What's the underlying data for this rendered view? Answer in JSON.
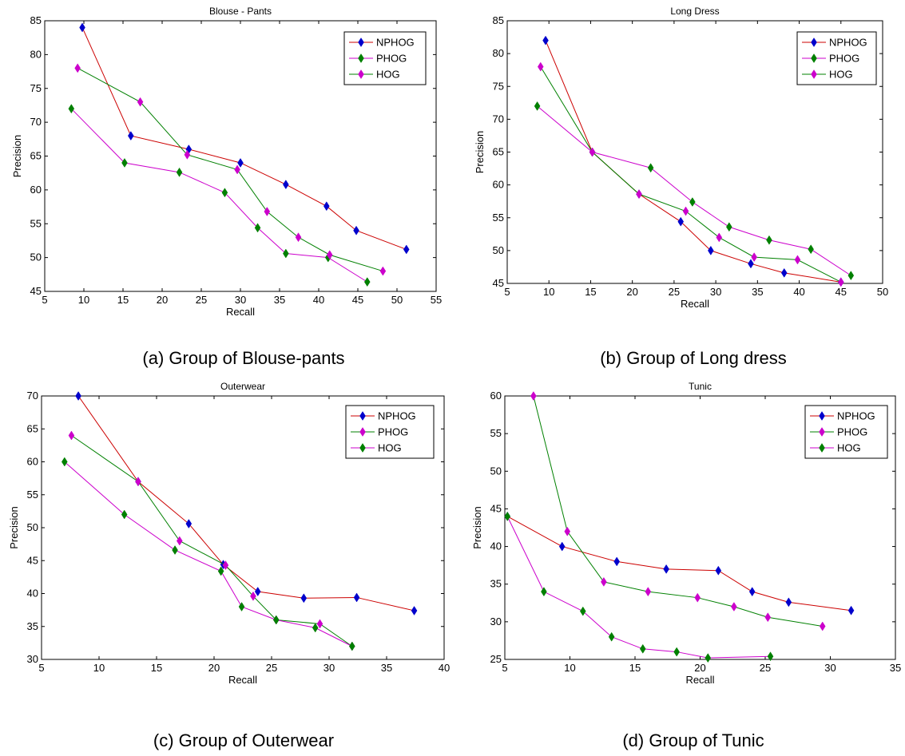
{
  "captions": [
    "(a)  Group of Blouse-pants",
    "(b)  Group of Long dress",
    "(c)  Group of Outerwear",
    "(d)  Group of Tunic"
  ],
  "chart_data": [
    {
      "type": "line",
      "title": "Blouse - Pants",
      "xlabel": "Recall",
      "ylabel": "Precision",
      "xlim": [
        5,
        55
      ],
      "ylim": [
        45,
        85
      ],
      "xticks": [
        5,
        10,
        15,
        20,
        25,
        30,
        35,
        40,
        45,
        50,
        55
      ],
      "yticks": [
        45,
        50,
        55,
        60,
        65,
        70,
        75,
        80,
        85
      ],
      "grid": false,
      "legend": "top-right",
      "legend_entries": [
        {
          "label": "NPHOG",
          "line": "#cc0000",
          "marker": "#0000cc"
        },
        {
          "label": "PHOG",
          "line": "#cc00cc",
          "marker": "#008000"
        },
        {
          "label": "HOG",
          "line": "#008000",
          "marker": "#cc00cc"
        }
      ],
      "series": [
        {
          "line": "#cc0000",
          "marker": "#0000cc",
          "x": [
            9.8,
            16,
            23.4,
            30,
            35.8,
            41,
            44.8,
            51.2
          ],
          "y": [
            84,
            68,
            66,
            64,
            60.8,
            57.6,
            54,
            51.2
          ]
        },
        {
          "line": "#cc00cc",
          "marker": "#008000",
          "x": [
            8.4,
            15.2,
            22.2,
            28,
            32.2,
            35.8,
            41.2,
            46.2
          ],
          "y": [
            72,
            64,
            62.6,
            59.6,
            54.4,
            50.6,
            50,
            46.4
          ]
        },
        {
          "line": "#008000",
          "marker": "#cc00cc",
          "x": [
            9.2,
            17.2,
            23.2,
            29.6,
            33.4,
            37.4,
            41.4,
            48.2
          ],
          "y": [
            78,
            73,
            65.2,
            63,
            56.8,
            53,
            50.4,
            48
          ]
        }
      ]
    },
    {
      "type": "line",
      "title": "Long Dress",
      "xlabel": "Recall",
      "ylabel": "Precision",
      "xlim": [
        5,
        50
      ],
      "ylim": [
        45,
        85
      ],
      "xticks": [
        5,
        10,
        15,
        20,
        25,
        30,
        35,
        40,
        45,
        50
      ],
      "yticks": [
        45,
        50,
        55,
        60,
        65,
        70,
        75,
        80,
        85
      ],
      "grid": false,
      "legend": "top-right",
      "legend_entries": [
        {
          "label": "NPHOG",
          "line": "#cc0000",
          "marker": "#0000cc"
        },
        {
          "label": "PHOG",
          "line": "#cc00cc",
          "marker": "#008000"
        },
        {
          "label": "HOG",
          "line": "#008000",
          "marker": "#cc00cc"
        }
      ],
      "series": [
        {
          "line": "#cc0000",
          "marker": "#0000cc",
          "x": [
            9.6,
            15.2,
            20.8,
            25.8,
            29.4,
            34.2,
            38.2,
            45
          ],
          "y": [
            82,
            65,
            58.6,
            54.4,
            50,
            48,
            46.6,
            45.2
          ]
        },
        {
          "line": "#cc00cc",
          "marker": "#008000",
          "x": [
            8.6,
            15.2,
            22.2,
            27.2,
            31.6,
            36.4,
            41.4,
            46.2
          ],
          "y": [
            72,
            65,
            62.6,
            57.4,
            53.6,
            51.6,
            50.2,
            46.2
          ]
        },
        {
          "line": "#008000",
          "marker": "#cc00cc",
          "x": [
            9,
            15.2,
            20.8,
            26.4,
            30.4,
            34.6,
            39.8,
            45
          ],
          "y": [
            78,
            65,
            58.6,
            56,
            52,
            49,
            48.6,
            45.2
          ]
        }
      ]
    },
    {
      "type": "line",
      "title": "Outerwear",
      "xlabel": "Recall",
      "ylabel": "Precision",
      "xlim": [
        5,
        40
      ],
      "ylim": [
        30,
        70
      ],
      "xticks": [
        5,
        10,
        15,
        20,
        25,
        30,
        35,
        40
      ],
      "yticks": [
        30,
        35,
        40,
        45,
        50,
        55,
        60,
        65,
        70
      ],
      "grid": false,
      "legend": "top-right",
      "legend_entries": [
        {
          "label": "NPHOG",
          "line": "#cc0000",
          "marker": "#0000cc"
        },
        {
          "label": "PHOG",
          "line": "#008000",
          "marker": "#cc00cc"
        },
        {
          "label": "HOG",
          "line": "#cc00cc",
          "marker": "#008000"
        }
      ],
      "series": [
        {
          "line": "#cc0000",
          "marker": "#0000cc",
          "x": [
            8.2,
            13.4,
            17.8,
            20.8,
            23.8,
            27.8,
            32.4,
            37.4
          ],
          "y": [
            70,
            57,
            50.6,
            44.4,
            40.3,
            39.3,
            39.4,
            37.4
          ]
        },
        {
          "line": "#008000",
          "marker": "#cc00cc",
          "x": [
            7.6,
            13.4,
            17,
            21,
            23.4,
            25.4,
            29.2,
            32
          ],
          "y": [
            64,
            57,
            48,
            44.3,
            39.6,
            36,
            35.4,
            32
          ]
        },
        {
          "line": "#cc00cc",
          "marker": "#008000",
          "x": [
            7,
            12.2,
            16.6,
            20.6,
            22.4,
            25.4,
            28.8,
            32
          ],
          "y": [
            60,
            52,
            46.6,
            43.4,
            38,
            36,
            34.8,
            32
          ]
        }
      ]
    },
    {
      "type": "line",
      "title": "Tunic",
      "xlabel": "Recall",
      "ylabel": "Precision",
      "xlim": [
        5,
        35
      ],
      "ylim": [
        25,
        60
      ],
      "xticks": [
        5,
        10,
        15,
        20,
        25,
        30,
        35
      ],
      "yticks": [
        25,
        30,
        35,
        40,
        45,
        50,
        55,
        60
      ],
      "grid": false,
      "legend": "top-right",
      "legend_entries": [
        {
          "label": "NPHOG",
          "line": "#cc0000",
          "marker": "#0000cc"
        },
        {
          "label": "PHOG",
          "line": "#008000",
          "marker": "#cc00cc"
        },
        {
          "label": "HOG",
          "line": "#cc00cc",
          "marker": "#008000"
        }
      ],
      "series": [
        {
          "line": "#cc0000",
          "marker": "#0000cc",
          "x": [
            5.2,
            9.4,
            13.6,
            17.4,
            21.4,
            24,
            26.8,
            31.6
          ],
          "y": [
            44,
            40,
            38,
            37,
            36.8,
            34,
            32.6,
            31.5
          ]
        },
        {
          "line": "#008000",
          "marker": "#cc00cc",
          "x": [
            7.2,
            9.8,
            12.6,
            16,
            19.8,
            22.6,
            25.2,
            29.4
          ],
          "y": [
            60,
            42,
            35.3,
            34,
            33.2,
            32,
            30.6,
            29.4
          ]
        },
        {
          "line": "#cc00cc",
          "marker": "#008000",
          "x": [
            5.2,
            8,
            11,
            13.2,
            15.6,
            18.2,
            20.6,
            25.4
          ],
          "y": [
            44,
            34,
            31.4,
            28,
            26.4,
            26,
            25.2,
            25.4
          ]
        }
      ]
    }
  ]
}
